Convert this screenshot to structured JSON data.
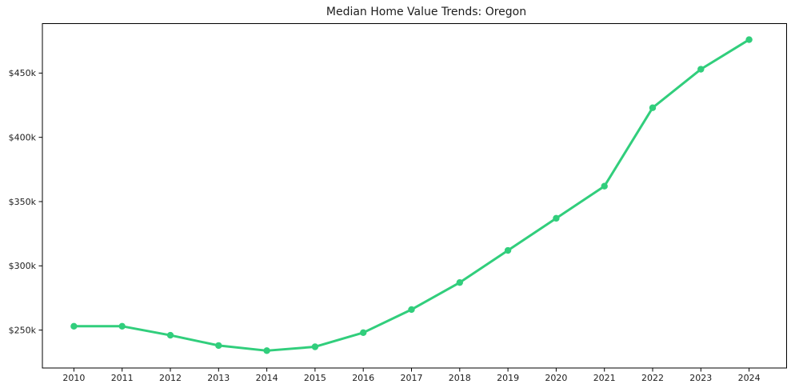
{
  "chart_data": {
    "type": "line",
    "title": "Median Home Value Trends: Oregon",
    "categories": [
      "2010",
      "2011",
      "2012",
      "2013",
      "2014",
      "2015",
      "2016",
      "2017",
      "2018",
      "2019",
      "2020",
      "2021",
      "2022",
      "2023",
      "2024"
    ],
    "values": [
      253,
      253,
      246,
      238,
      234,
      237,
      248,
      266,
      287,
      312,
      337,
      362,
      423,
      453,
      476
    ],
    "value_unit": "USD thousands",
    "value_format": "$Nk",
    "xlabel": "",
    "ylabel": "",
    "y_ticks": [
      {
        "value": 250,
        "label": "$250k"
      },
      {
        "value": 300,
        "label": "$300k"
      },
      {
        "value": 350,
        "label": "$350k"
      },
      {
        "value": 400,
        "label": "$400k"
      },
      {
        "value": 450,
        "label": "$450k"
      }
    ],
    "ylim": [
      220.5,
      488.5
    ],
    "grid": false,
    "legend_position": "none",
    "marker": "circle",
    "colors": {
      "line": "#31ce7c",
      "marker": "#31ce7c",
      "axis": "#000000",
      "text": "#1c1c1c",
      "background": "#ffffff"
    }
  }
}
